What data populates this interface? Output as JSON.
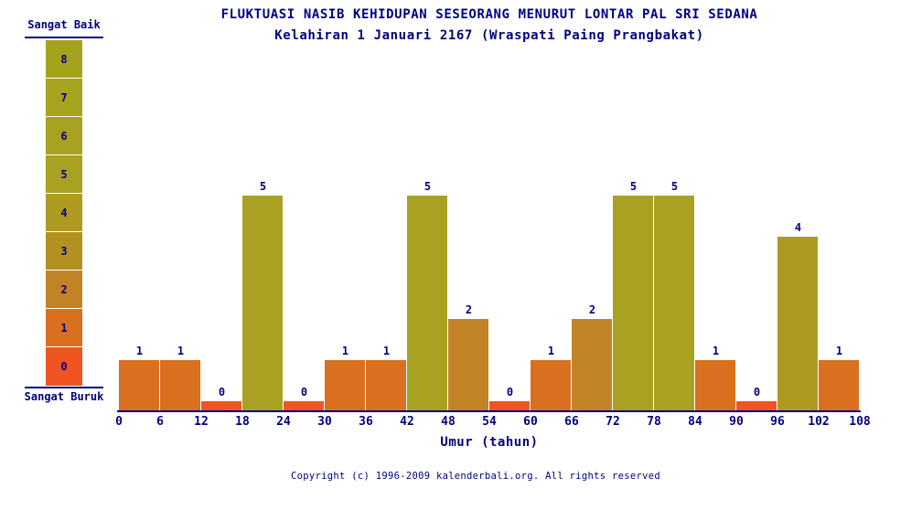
{
  "title": "FLUKTUASI NASIB KEHIDUPAN SESEORANG MENURUT LONTAR PAL SRI SEDANA",
  "subtitle": "Kelahiran 1 Januari 2167 (Wraspati Paing Prangbakat)",
  "legend": {
    "top_label": "Sangat Baik",
    "bottom_label": "Sangat Buruk",
    "levels": [
      8,
      7,
      6,
      5,
      4,
      3,
      2,
      1,
      0
    ]
  },
  "colors": {
    "text_navy": "#000080",
    "background": "#ffffff",
    "value_colors": {
      "8": "#a4a41c",
      "7": "#a6a31e",
      "6": "#a7a220",
      "5": "#a9a122",
      "4": "#ae9a21",
      "3": "#b49020",
      "2": "#c28327",
      "1": "#d8701f",
      "0": "#f05423"
    }
  },
  "chart_data": {
    "type": "bar",
    "title": "FLUKTUASI NASIB KEHIDUPAN SESEORANG MENURUT LONTAR PAL SRI SEDANA",
    "subtitle": "Kelahiran 1 Januari 2167 (Wraspati Paing Prangbakat)",
    "xlabel": "Umur (tahun)",
    "ylabel": "",
    "ylim": [
      0,
      8
    ],
    "grid": false,
    "legend_position": "left",
    "x_ticks": [
      0,
      6,
      12,
      18,
      24,
      30,
      36,
      42,
      48,
      54,
      60,
      66,
      72,
      78,
      84,
      90,
      96,
      102,
      108
    ],
    "categories": [
      "0-6",
      "6-12",
      "12-18",
      "18-24",
      "24-30",
      "30-36",
      "36-42",
      "42-48",
      "48-54",
      "54-60",
      "60-66",
      "66-72",
      "72-78",
      "78-84",
      "84-90",
      "90-96",
      "96-102",
      "102-108"
    ],
    "values": [
      1,
      1,
      0,
      5,
      0,
      1,
      1,
      5,
      2,
      0,
      1,
      2,
      5,
      5,
      1,
      0,
      4,
      1
    ],
    "bar_data_labels": [
      "1",
      "1",
      "0",
      "5",
      "0",
      "1",
      "1",
      "5",
      "2",
      "0",
      "1",
      "2",
      "5",
      "5",
      "1",
      "0",
      "4",
      "1"
    ]
  },
  "footer": {
    "copyright": "Copyright (c) 1996-2009 kalenderbali.org. All rights reserved"
  }
}
